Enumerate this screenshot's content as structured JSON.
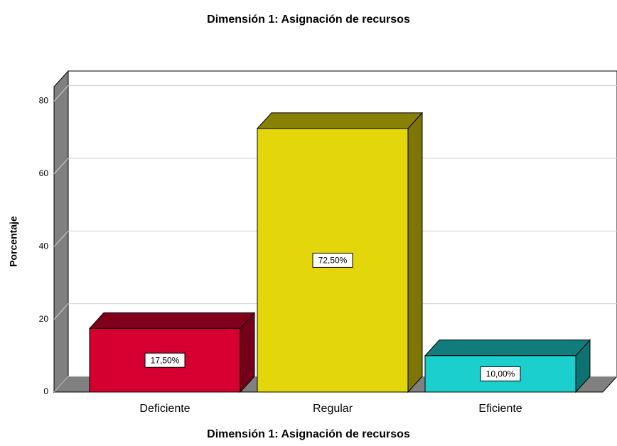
{
  "chart_data": {
    "type": "bar3d",
    "title": "Dimensión 1: Asignación de recursos",
    "x_label": "Dimensión 1: Asignación de recursos",
    "y_label": "Porcentaje",
    "categories": [
      "Deficiente",
      "Regular",
      "Eficiente"
    ],
    "values": [
      17.5,
      72.5,
      10.0
    ],
    "value_labels": [
      "17,50%",
      "72,50%",
      "10,00%"
    ],
    "colors": [
      "#d5002f",
      "#e3d70c",
      "#1ccfcf"
    ],
    "ylim": [
      0,
      84
    ],
    "yticks": [
      0,
      20,
      40,
      60,
      80
    ],
    "grid": true
  }
}
